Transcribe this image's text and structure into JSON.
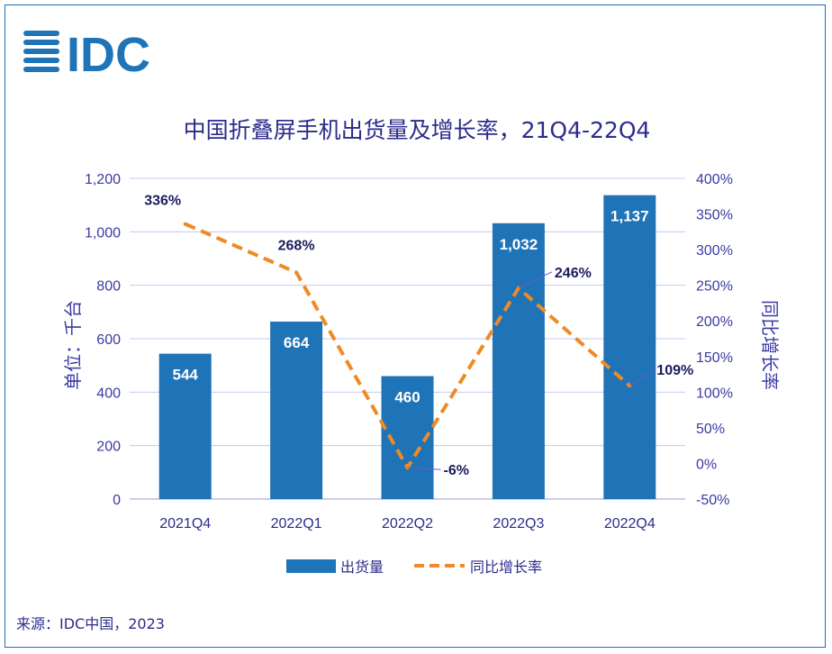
{
  "logo": {
    "text": "IDC"
  },
  "footer": {
    "source": "来源：IDC中国，2023"
  },
  "colors": {
    "bar": "#1f73b7",
    "line": "#f08a24",
    "axis_text": "#3b3aa6",
    "title": "#2d2c8c",
    "grid": "#c9c8f0"
  },
  "chart_data": {
    "type": "bar",
    "title": "中国折叠屏手机出货量及增长率，21Q4-22Q4",
    "ylabel": "单位：千台",
    "y2label": "同比增长率",
    "categories": [
      "2021Q4",
      "2022Q1",
      "2022Q2",
      "2022Q3",
      "2022Q4"
    ],
    "ylim": [
      0,
      1200
    ],
    "y2lim": [
      -50,
      400
    ],
    "yticks": [
      "0",
      "200",
      "400",
      "600",
      "800",
      "1,000",
      "1,200"
    ],
    "y2ticks": [
      "-50%",
      "0%",
      "50%",
      "100%",
      "150%",
      "200%",
      "250%",
      "300%",
      "350%",
      "400%"
    ],
    "grid": true,
    "legend_position": "bottom",
    "series": [
      {
        "name": "出货量",
        "type": "bar",
        "axis": "left",
        "values": [
          544,
          664,
          460,
          1032,
          1137
        ],
        "labels": [
          "544",
          "664",
          "460",
          "1,032",
          "1,137"
        ]
      },
      {
        "name": "同比增长率",
        "type": "line",
        "style": "dashed",
        "axis": "right",
        "values": [
          336,
          268,
          -6,
          246,
          109
        ],
        "labels": [
          "336%",
          "268%",
          "-6%",
          "246%",
          "109%"
        ]
      }
    ]
  }
}
